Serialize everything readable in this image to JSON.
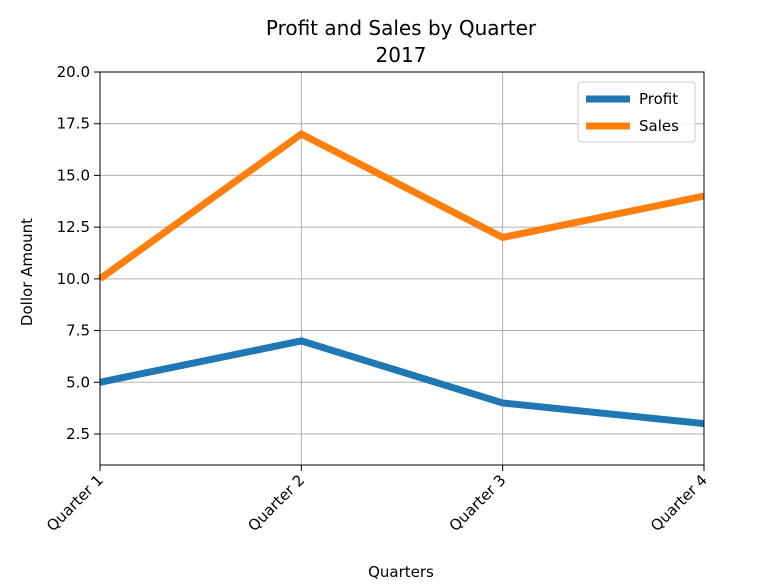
{
  "chart_data": {
    "type": "line",
    "title": "Profit and Sales by Quarter",
    "subtitle": "2017",
    "xlabel": "Quarters",
    "ylabel": "Dollor Amount",
    "categories": [
      "Quarter 1",
      "Quarter 2",
      "Quarter 3",
      "Quarter 4"
    ],
    "ylim": [
      1,
      20
    ],
    "yticks": [
      "2.5",
      "5.0",
      "7.5",
      "10.0",
      "12.5",
      "15.0",
      "17.5",
      "20.0"
    ],
    "grid": true,
    "legend_position": "top-right",
    "series": [
      {
        "name": "Profit",
        "values": [
          5,
          7,
          4,
          3
        ],
        "color": "#1f77b4"
      },
      {
        "name": "Sales",
        "values": [
          10,
          17,
          12,
          14
        ],
        "color": "#ff7f0e"
      }
    ]
  }
}
